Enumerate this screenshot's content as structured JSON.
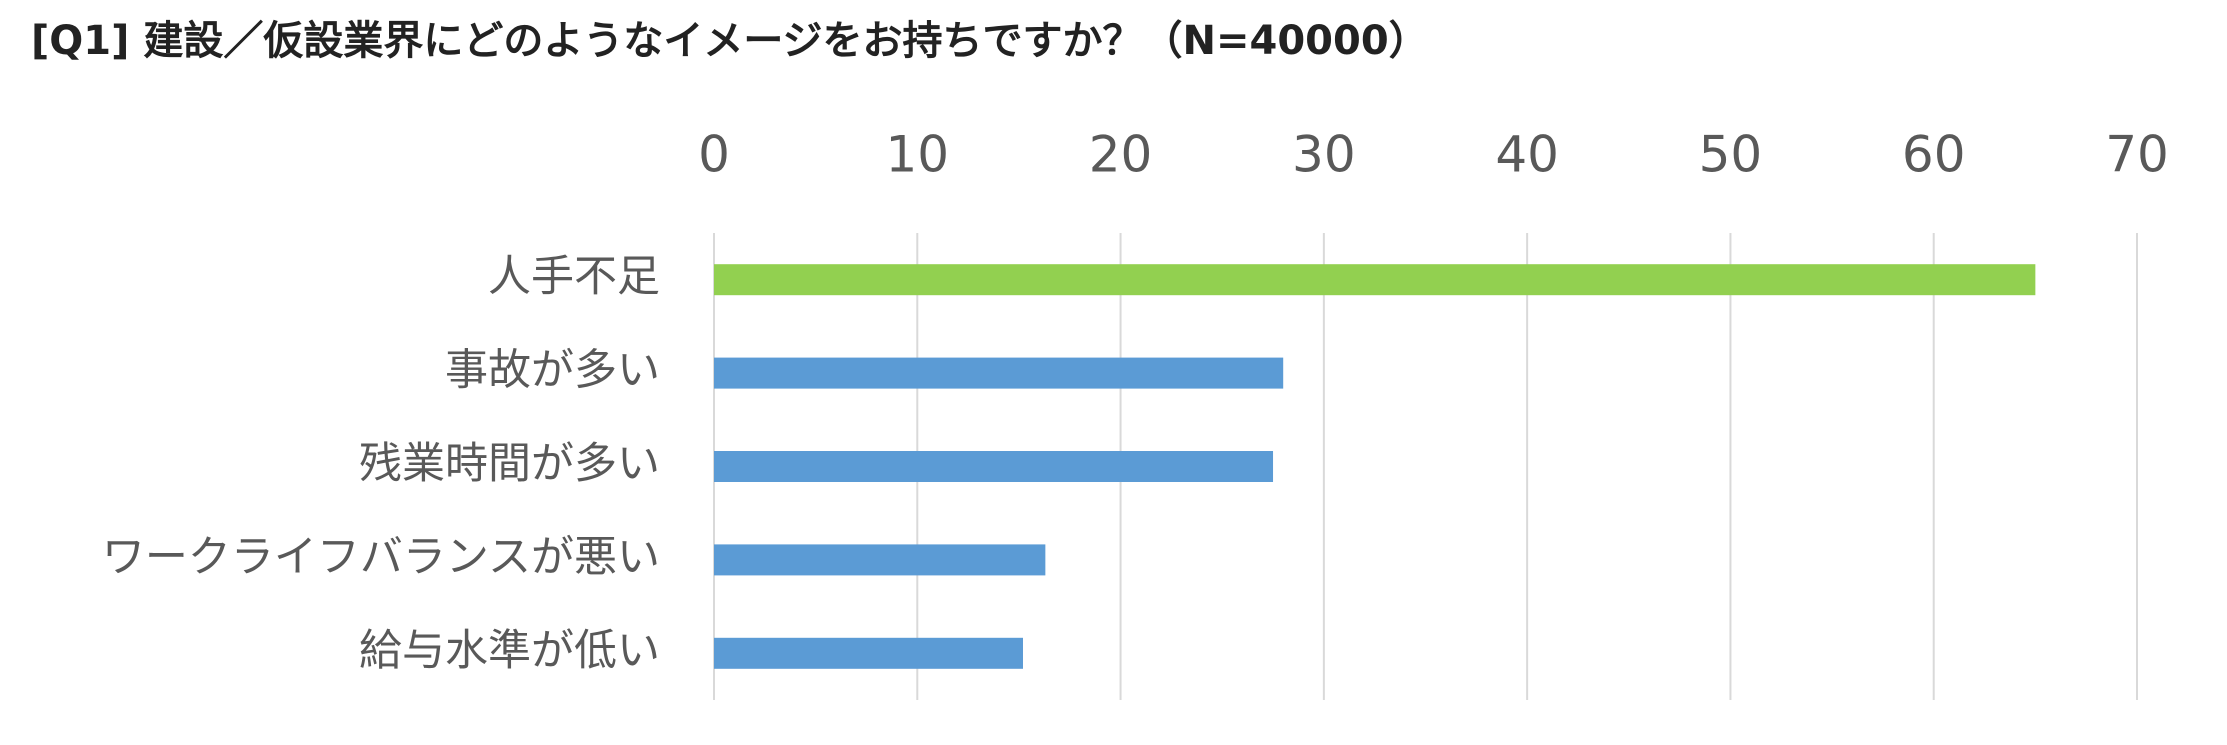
{
  "chart_data": {
    "type": "barh",
    "title": "[Q1] 建設／仮設業界にどのようなイメージをお持ちですか？（N=40000）",
    "categories": [
      "人手不足",
      "事故が多い",
      "残業時間が多い",
      "ワークライフバランスが悪い",
      "給与水準が低い"
    ],
    "values": [
      65,
      28,
      27.5,
      16.3,
      15.2
    ],
    "colors": [
      "#92d050",
      "#5b9bd5",
      "#5b9bd5",
      "#5b9bd5",
      "#5b9bd5"
    ],
    "xlim": [
      0,
      70
    ],
    "xticks": [
      0,
      10,
      20,
      30,
      40,
      50,
      60,
      70
    ],
    "grid": true
  }
}
